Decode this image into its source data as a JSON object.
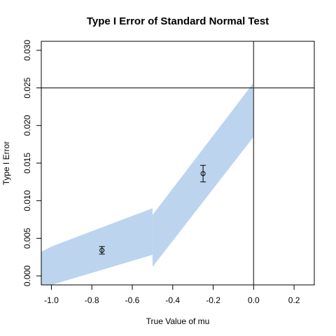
{
  "chart_data": {
    "type": "area",
    "title": "Type I Error of Standard Normal Test",
    "xlabel": "True Value of mu",
    "ylabel": "Type I Error",
    "xlim": [
      -1.05,
      0.3
    ],
    "ylim": [
      -0.0012,
      0.0312
    ],
    "x_ticks": [
      -1.0,
      -0.8,
      -0.6,
      -0.4,
      -0.2,
      0.0,
      0.2
    ],
    "x_tick_labels": [
      "-1.0",
      "-0.8",
      "-0.6",
      "-0.4",
      "-0.2",
      "0.0",
      "0.2"
    ],
    "y_ticks": [
      0.0,
      0.005,
      0.01,
      0.015,
      0.02,
      0.025,
      0.03
    ],
    "y_tick_labels": [
      "0.000",
      "0.005",
      "0.010",
      "0.015",
      "0.020",
      "0.025",
      "0.030"
    ],
    "band_color": "#bcd4ee",
    "bands": [
      {
        "x": [
          -1.05,
          -1.0
        ],
        "upper": [
          0.0032,
          0.0039
        ],
        "lower": [
          -0.0012,
          -0.0012
        ]
      },
      {
        "x": [
          -1.0,
          -0.5
        ],
        "upper": [
          0.0039,
          0.009
        ],
        "lower": [
          -0.0012,
          0.0028
        ]
      },
      {
        "x": [
          -0.5,
          0.0
        ],
        "upper": [
          0.0081,
          0.0257
        ],
        "lower": [
          0.0012,
          0.0185
        ]
      }
    ],
    "points": [
      {
        "x": -0.75,
        "y": 0.0034,
        "lower": 0.0029,
        "upper": 0.0039
      },
      {
        "x": -0.25,
        "y": 0.0136,
        "lower": 0.0125,
        "upper": 0.0147
      }
    ],
    "hline": 0.025,
    "vline": 0.0
  }
}
